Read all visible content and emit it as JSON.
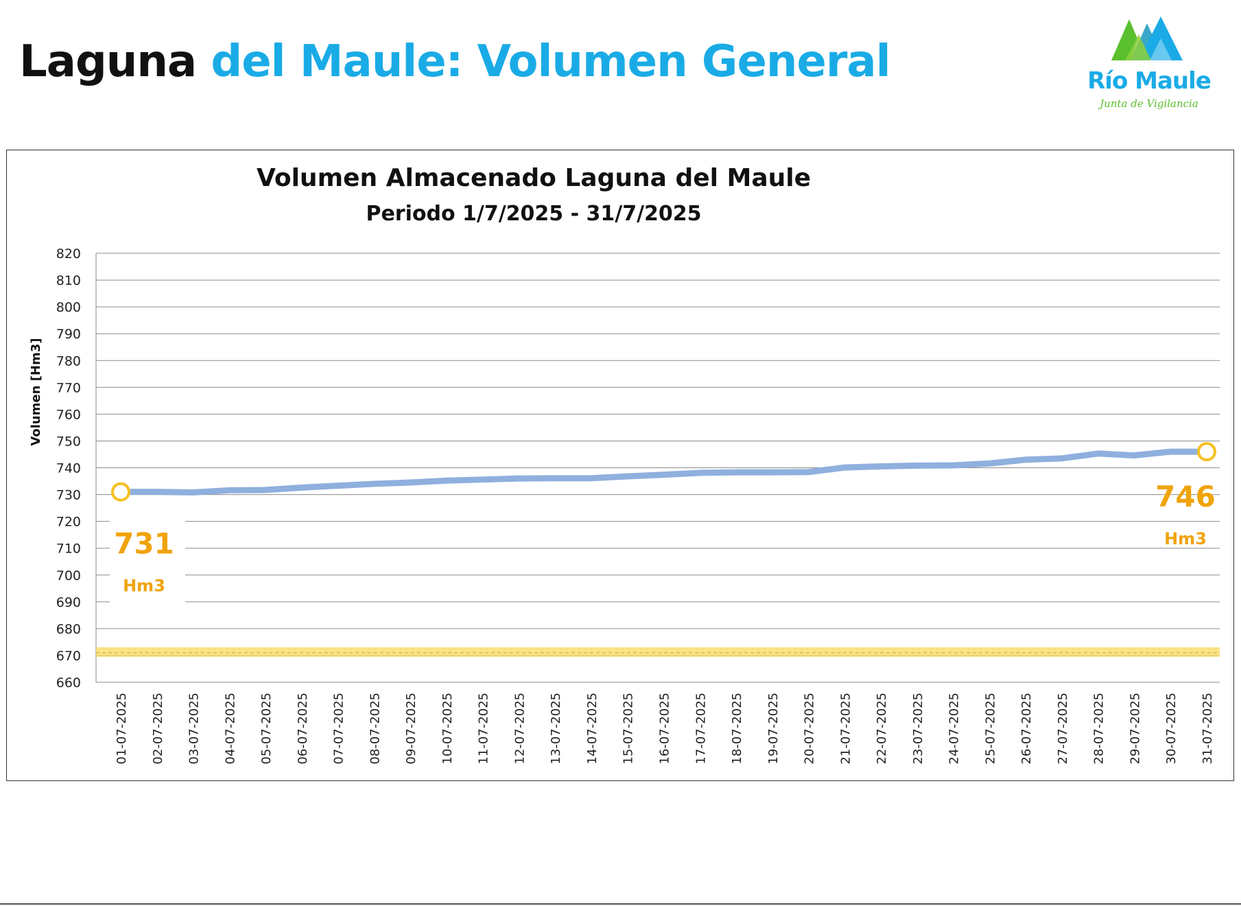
{
  "header": {
    "title_part1": "Laguna",
    "title_part2": "del Maule: Volumen General"
  },
  "logo": {
    "name": "Río Maule",
    "tagline": "Junta de Vigilancia",
    "colors": {
      "blue": "#1aabe6",
      "green": "#5ac02e"
    }
  },
  "chart_data": {
    "type": "line",
    "title": "Volumen Almacenado Laguna del Maule",
    "subtitle": "Periodo 1/7/2025 - 31/7/2025",
    "xlabel": "",
    "ylabel": "Volumen [Hm3]",
    "ylim": [
      660,
      820
    ],
    "yticks": [
      660,
      670,
      680,
      690,
      700,
      710,
      720,
      730,
      740,
      750,
      760,
      770,
      780,
      790,
      800,
      810,
      820
    ],
    "grid": true,
    "categories": [
      "01-07-2025",
      "02-07-2025",
      "03-07-2025",
      "04-07-2025",
      "05-07-2025",
      "06-07-2025",
      "07-07-2025",
      "08-07-2025",
      "09-07-2025",
      "10-07-2025",
      "11-07-2025",
      "12-07-2025",
      "13-07-2025",
      "14-07-2025",
      "15-07-2025",
      "16-07-2025",
      "17-07-2025",
      "18-07-2025",
      "19-07-2025",
      "20-07-2025",
      "21-07-2025",
      "22-07-2025",
      "23-07-2025",
      "24-07-2025",
      "25-07-2025",
      "26-07-2025",
      "27-07-2025",
      "28-07-2025",
      "29-07-2025",
      "30-07-2025",
      "31-07-2025"
    ],
    "series": [
      {
        "name": "Volumen",
        "color": "#8fb0de",
        "values": [
          731,
          731,
          730.8,
          731.6,
          731.7,
          732.6,
          733.3,
          734,
          734.5,
          735.2,
          735.6,
          736,
          736.1,
          736.1,
          736.8,
          737.4,
          738.1,
          738.3,
          738.3,
          738.4,
          740.1,
          740.5,
          740.8,
          740.9,
          741.6,
          743,
          743.5,
          745.3,
          744.6,
          746,
          746
        ]
      }
    ],
    "reference_line": {
      "value": 671,
      "color": "#f7d95c"
    },
    "annotations": [
      {
        "index": 0,
        "value_text": "731",
        "unit_text": "Hm3",
        "color": "#f0a30a",
        "marker_color": "#f5c023"
      },
      {
        "index": 30,
        "value_text": "746",
        "unit_text": "Hm3",
        "color": "#f0a30a",
        "marker_color": "#f5c023"
      }
    ]
  }
}
